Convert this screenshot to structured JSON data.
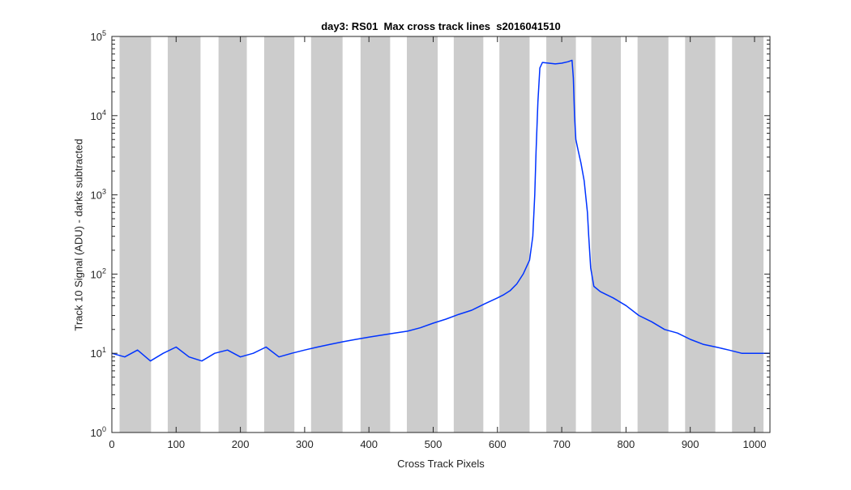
{
  "chart_data": {
    "type": "line",
    "title": "day3: RS01  Max cross track lines  s2016041510",
    "xlabel": "Cross Track Pixels",
    "ylabel": "Track 10 Signal (ADU) - darks subtracted",
    "xlim": [
      0,
      1024
    ],
    "ylim": [
      1,
      100000
    ],
    "yscale": "log",
    "x_ticks": [
      0,
      100,
      200,
      300,
      400,
      500,
      600,
      700,
      800,
      900,
      1000
    ],
    "y_ticks": [
      {
        "value": 1,
        "base": "10",
        "exp": "0"
      },
      {
        "value": 10,
        "base": "10",
        "exp": "1"
      },
      {
        "value": 100,
        "base": "10",
        "exp": "2"
      },
      {
        "value": 1000,
        "base": "10",
        "exp": "3"
      },
      {
        "value": 10000,
        "base": "10",
        "exp": "4"
      },
      {
        "value": 100000,
        "base": "10",
        "exp": "5"
      }
    ],
    "shaded_bands": [
      [
        12,
        61
      ],
      [
        87,
        138
      ],
      [
        166,
        210
      ],
      [
        237,
        284
      ],
      [
        310,
        359
      ],
      [
        387,
        433
      ],
      [
        459,
        507
      ],
      [
        532,
        578
      ],
      [
        603,
        650
      ],
      [
        676,
        722
      ],
      [
        746,
        792
      ],
      [
        818,
        866
      ],
      [
        892,
        939
      ],
      [
        965,
        1014
      ]
    ],
    "grid": false,
    "series": [
      {
        "color": "#0033ff",
        "x": [
          0,
          20,
          40,
          60,
          80,
          100,
          120,
          140,
          160,
          180,
          200,
          220,
          240,
          260,
          280,
          300,
          320,
          340,
          360,
          380,
          400,
          420,
          440,
          460,
          480,
          500,
          520,
          540,
          560,
          580,
          600,
          610,
          620,
          630,
          640,
          650,
          655,
          658,
          660,
          663,
          666,
          670,
          680,
          690,
          700,
          710,
          716,
          718,
          720,
          722,
          726,
          730,
          735,
          740,
          742,
          745,
          750,
          760,
          780,
          800,
          820,
          840,
          860,
          880,
          900,
          920,
          940,
          960,
          980,
          1000,
          1020,
          1024
        ],
        "y": [
          10,
          9,
          11,
          8,
          10,
          12,
          9,
          8,
          10,
          11,
          9,
          10,
          12,
          9,
          10,
          11,
          12,
          13,
          14,
          15,
          16,
          17,
          18,
          19,
          21,
          24,
          27,
          31,
          35,
          42,
          50,
          55,
          62,
          75,
          100,
          150,
          300,
          1000,
          3500,
          15000,
          40000,
          47000,
          46000,
          45000,
          46000,
          48000,
          50000,
          30000,
          10000,
          5000,
          3500,
          2500,
          1500,
          600,
          300,
          120,
          70,
          60,
          50,
          40,
          30,
          25,
          20,
          18,
          15,
          13,
          12,
          11,
          10,
          10,
          10,
          10
        ]
      }
    ]
  }
}
